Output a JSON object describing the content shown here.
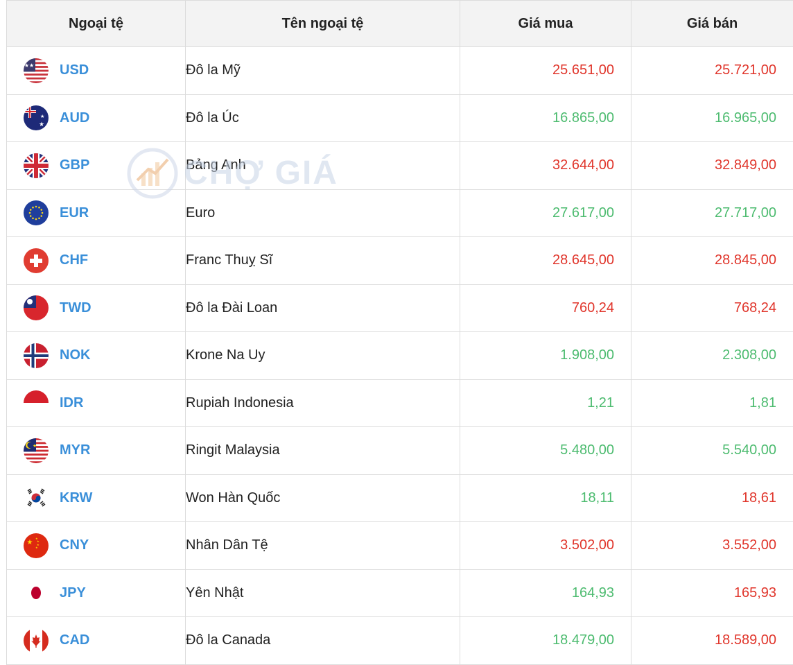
{
  "headers": [
    "Ngoại tệ",
    "Tên ngoại tệ",
    "Giá mua",
    "Giá bán"
  ],
  "watermark": "CHỢ GIÁ",
  "rows": [
    {
      "code": "USD",
      "name": "Đô la Mỹ",
      "buy": "25.651,00",
      "sell": "25.721,00",
      "buy_color": "red",
      "sell_color": "red",
      "flag": "us-flag-icon"
    },
    {
      "code": "AUD",
      "name": "Đô la Úc",
      "buy": "16.865,00",
      "sell": "16.965,00",
      "buy_color": "green",
      "sell_color": "green",
      "flag": "au-flag-icon"
    },
    {
      "code": "GBP",
      "name": "Bảng Anh",
      "buy": "32.644,00",
      "sell": "32.849,00",
      "buy_color": "red",
      "sell_color": "red",
      "flag": "gb-flag-icon"
    },
    {
      "code": "EUR",
      "name": "Euro",
      "buy": "27.617,00",
      "sell": "27.717,00",
      "buy_color": "green",
      "sell_color": "green",
      "flag": "eu-flag-icon"
    },
    {
      "code": "CHF",
      "name": "Franc Thuỵ Sĩ",
      "buy": "28.645,00",
      "sell": "28.845,00",
      "buy_color": "red",
      "sell_color": "red",
      "flag": "ch-flag-icon"
    },
    {
      "code": "TWD",
      "name": "Đô la Đài Loan",
      "buy": "760,24",
      "sell": "768,24",
      "buy_color": "red",
      "sell_color": "red",
      "flag": "tw-flag-icon"
    },
    {
      "code": "NOK",
      "name": "Krone Na Uy",
      "buy": "1.908,00",
      "sell": "2.308,00",
      "buy_color": "green",
      "sell_color": "green",
      "flag": "no-flag-icon"
    },
    {
      "code": "IDR",
      "name": "Rupiah Indonesia",
      "buy": "1,21",
      "sell": "1,81",
      "buy_color": "green",
      "sell_color": "green",
      "flag": "id-flag-icon"
    },
    {
      "code": "MYR",
      "name": "Ringit Malaysia",
      "buy": "5.480,00",
      "sell": "5.540,00",
      "buy_color": "green",
      "sell_color": "green",
      "flag": "my-flag-icon"
    },
    {
      "code": "KRW",
      "name": "Won Hàn Quốc",
      "buy": "18,11",
      "sell": "18,61",
      "buy_color": "green",
      "sell_color": "red",
      "flag": "kr-flag-icon"
    },
    {
      "code": "CNY",
      "name": "Nhân Dân Tệ",
      "buy": "3.502,00",
      "sell": "3.552,00",
      "buy_color": "red",
      "sell_color": "red",
      "flag": "cn-flag-icon"
    },
    {
      "code": "JPY",
      "name": "Yên Nhật",
      "buy": "164,93",
      "sell": "165,93",
      "buy_color": "green",
      "sell_color": "red",
      "flag": "jp-flag-icon"
    },
    {
      "code": "CAD",
      "name": "Đô la Canada",
      "buy": "18.479,00",
      "sell": "18.589,00",
      "buy_color": "green",
      "sell_color": "red",
      "flag": "ca-flag-icon"
    }
  ]
}
